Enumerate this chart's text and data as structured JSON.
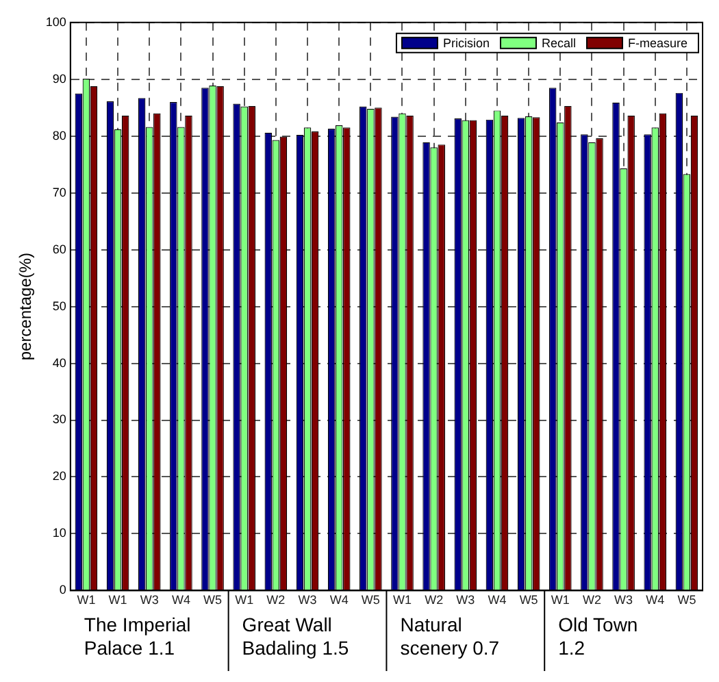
{
  "chart_data": {
    "type": "bar",
    "ylabel": "percentage(%)",
    "categories": [
      "W1",
      "W1",
      "W3",
      "W4",
      "W5",
      "W1",
      "W2",
      "W3",
      "W4",
      "W5",
      "W1",
      "W2",
      "W3",
      "W4",
      "W5",
      "W1",
      "W2",
      "W3",
      "W4",
      "W5"
    ],
    "series": [
      {
        "name": "Pricision",
        "color": "#00008b",
        "values": [
          87.5,
          86.1,
          86.7,
          86.0,
          88.5,
          85.7,
          80.6,
          80.2,
          81.3,
          85.2,
          83.4,
          78.9,
          83.1,
          82.9,
          83.2,
          88.5,
          80.3,
          85.9,
          80.3,
          87.6
        ]
      },
      {
        "name": "Recall",
        "color": "#80ff80",
        "values": [
          90.1,
          81.2,
          81.6,
          81.6,
          88.9,
          85.2,
          79.3,
          81.5,
          81.9,
          84.8,
          84.0,
          78.0,
          82.8,
          84.5,
          83.5,
          82.4,
          78.9,
          74.3,
          81.5,
          73.3
        ]
      },
      {
        "name": "F-measure",
        "color": "#800000",
        "values": [
          88.8,
          83.6,
          84.0,
          83.6,
          88.8,
          85.3,
          79.9,
          80.8,
          81.5,
          85.0,
          83.6,
          78.5,
          82.8,
          83.6,
          83.3,
          85.3,
          79.6,
          83.6,
          84.0,
          83.6
        ]
      }
    ],
    "ylim": [
      0,
      100
    ],
    "yticks": [
      0,
      10,
      20,
      30,
      40,
      50,
      60,
      70,
      80,
      90,
      100
    ],
    "grid": true,
    "legend": "top right",
    "annotations": [
      "The Imperial Palace 1.1",
      "Great Wall Badaling 1.5",
      "Natural scenery 0.7",
      "Old Town 1.2"
    ]
  }
}
